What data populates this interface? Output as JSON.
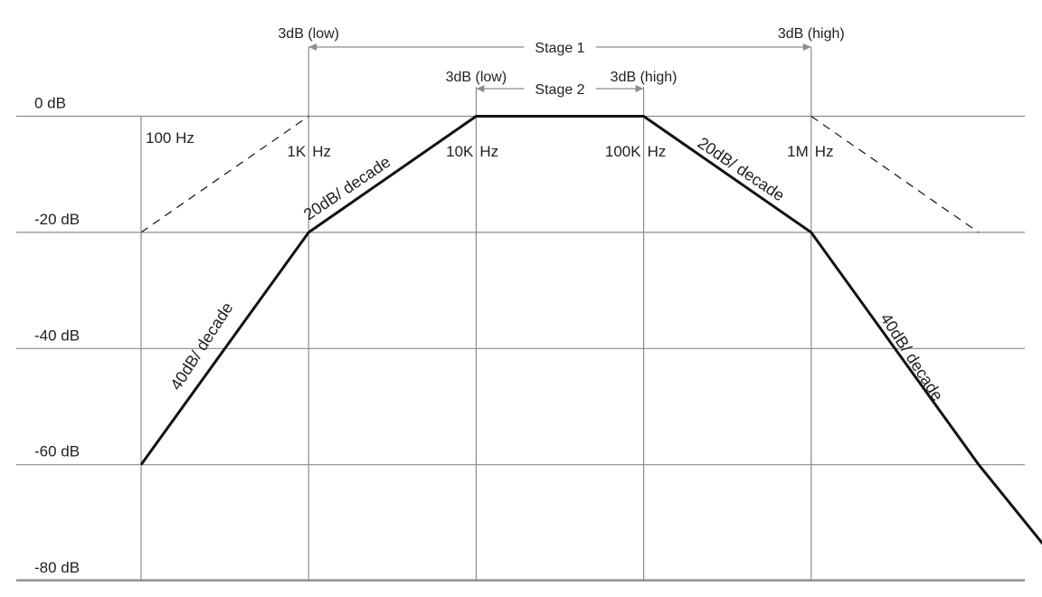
{
  "chart_data": {
    "type": "line",
    "y_tick_labels": [
      "0 dB",
      "-20 dB",
      "-40 dB",
      "-60 dB",
      "-80 dB"
    ],
    "y_ticks": [
      0,
      -20,
      -40,
      -60,
      -80
    ],
    "x_tick_labels": [
      "100 Hz",
      "1K Hz",
      "10K Hz",
      "100K Hz",
      "1M Hz"
    ],
    "x_ticks": [
      100,
      1000,
      10000,
      100000,
      1000000
    ],
    "x_scale": "log",
    "xlim": [
      50,
      35000000
    ],
    "ylim": [
      -80,
      0
    ],
    "grid": true,
    "series": [
      {
        "style": "solid",
        "x": [
          100,
          1000,
          10000,
          100000,
          1000000,
          10000000,
          30000000
        ],
        "y": [
          -60,
          -20,
          0,
          0,
          -20,
          -60,
          -77
        ]
      },
      {
        "style": "dashed",
        "x": [
          100,
          1000
        ],
        "y": [
          -20,
          0
        ]
      },
      {
        "style": "dashed",
        "x": [
          1000000,
          10000000
        ],
        "y": [
          0,
          -20
        ]
      }
    ],
    "slope_labels": {
      "left_steep": "40dB/ decade",
      "left_shallow": "20dB/ decade",
      "right_shallow": "20dB/ decade",
      "right_steep": "40dB/ decade"
    },
    "bandwidth_markers": {
      "stage1": {
        "label": "Stage 1",
        "low_label": "3dB (low)",
        "high_label": "3dB (high)",
        "low_x": 1000,
        "high_x": 1000000
      },
      "stage2": {
        "label": "Stage 2",
        "low_label": "3dB (low)",
        "high_label": "3dB (high)",
        "low_x": 10000,
        "high_x": 100000
      }
    }
  }
}
